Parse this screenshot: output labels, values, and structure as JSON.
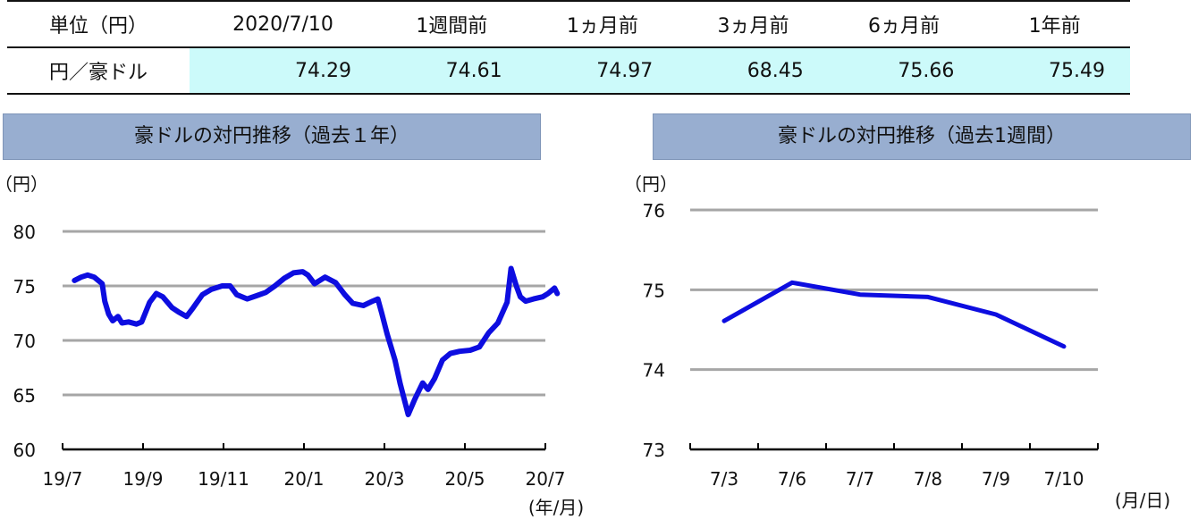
{
  "table": {
    "headers": [
      "単位（円）",
      "2020/7/10",
      "1週間前",
      "1ヵ月前",
      "3ヵ月前",
      "6ヵ月前",
      "1年前"
    ],
    "row_label": "円／豪ドル",
    "values": [
      "74.29",
      "74.61",
      "74.97",
      "68.45",
      "75.66",
      "75.49"
    ]
  },
  "chart_data": [
    {
      "type": "line",
      "title": "豪ドルの対円推移（過去１年）",
      "ylabel": "（円）",
      "xlabel": "(年/月)",
      "ylim": [
        60,
        80
      ],
      "yticks": [
        60,
        65,
        70,
        75,
        80
      ],
      "xticks": [
        "19/7",
        "19/9",
        "19/11",
        "20/1",
        "20/3",
        "20/5",
        "20/7"
      ],
      "series_color": "#0d0de0",
      "x": [
        "2019-07-10",
        "2019-07-15",
        "2019-07-20",
        "2019-07-25",
        "2019-07-31",
        "2019-08-02",
        "2019-08-05",
        "2019-08-08",
        "2019-08-12",
        "2019-08-15",
        "2019-08-20",
        "2019-08-26",
        "2019-08-30",
        "2019-09-05",
        "2019-09-10",
        "2019-09-15",
        "2019-09-22",
        "2019-09-27",
        "2019-10-03",
        "2019-10-08",
        "2019-10-15",
        "2019-10-22",
        "2019-10-30",
        "2019-11-05",
        "2019-11-10",
        "2019-11-18",
        "2019-11-25",
        "2019-12-02",
        "2019-12-09",
        "2019-12-16",
        "2019-12-23",
        "2019-12-30",
        "2020-01-03",
        "2020-01-08",
        "2020-01-16",
        "2020-01-24",
        "2020-01-31",
        "2020-02-06",
        "2020-02-14",
        "2020-02-21",
        "2020-02-25",
        "2020-02-28",
        "2020-03-03",
        "2020-03-09",
        "2020-03-13",
        "2020-03-19",
        "2020-03-24",
        "2020-03-30",
        "2020-04-03",
        "2020-04-08",
        "2020-04-14",
        "2020-04-20",
        "2020-04-27",
        "2020-05-05",
        "2020-05-12",
        "2020-05-19",
        "2020-05-26",
        "2020-06-02",
        "2020-06-05",
        "2020-06-09",
        "2020-06-12",
        "2020-06-16",
        "2020-06-22",
        "2020-06-29",
        "2020-07-03",
        "2020-07-08",
        "2020-07-10"
      ],
      "values": [
        75.5,
        75.8,
        76.0,
        75.8,
        75.2,
        73.6,
        72.4,
        71.8,
        72.2,
        71.6,
        71.7,
        71.5,
        71.7,
        73.5,
        74.3,
        74.0,
        73.0,
        72.6,
        72.2,
        73.0,
        74.2,
        74.7,
        75.0,
        75.0,
        74.2,
        73.8,
        74.1,
        74.4,
        75.0,
        75.7,
        76.2,
        76.3,
        76.0,
        75.2,
        75.8,
        75.3,
        74.2,
        73.4,
        73.2,
        73.6,
        73.8,
        72.5,
        70.6,
        68.2,
        66.0,
        63.2,
        64.6,
        66.1,
        65.5,
        66.5,
        68.2,
        68.8,
        69.0,
        69.1,
        69.4,
        70.7,
        71.6,
        73.5,
        76.6,
        75.0,
        74.0,
        73.6,
        73.8,
        74.0,
        74.3,
        74.8,
        74.3
      ]
    },
    {
      "type": "line",
      "title": "豪ドルの対円推移（過去1週間）",
      "ylabel": "（円）",
      "xlabel": "(月/日)",
      "ylim": [
        73,
        76
      ],
      "yticks": [
        73,
        74,
        75,
        76
      ],
      "categories": [
        "7/3",
        "7/6",
        "7/7",
        "7/8",
        "7/9",
        "7/10"
      ],
      "values": [
        74.61,
        75.09,
        74.94,
        74.91,
        74.69,
        74.29
      ],
      "series_color": "#0d0de0"
    }
  ]
}
